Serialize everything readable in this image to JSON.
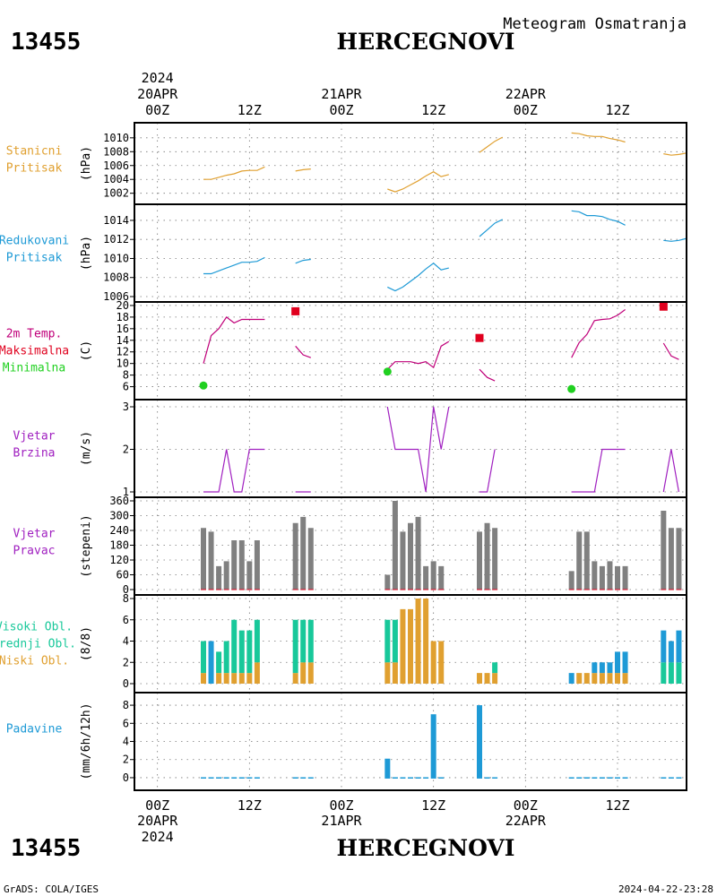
{
  "header": {
    "station_id": "13455",
    "station_name": "HERCEGNOVI",
    "subtitle": "Meteogram Osmatranja"
  },
  "footer": {
    "credit": "GrADS: COLA/IGES",
    "timestamp": "2024-04-22-23:28"
  },
  "time_axis": {
    "year": "2024",
    "tick_labels": [
      "00Z",
      "12Z",
      "00Z",
      "12Z",
      "00Z",
      "12Z"
    ],
    "date_labels": [
      "20APR",
      "21APR",
      "22APR"
    ],
    "range_hours": [
      -3,
      69
    ]
  },
  "colors": {
    "station_pressure": "#e0a030",
    "reduced_pressure": "#1e9ad6",
    "temp_line": "#c0007a",
    "temp_max": "#e0001e",
    "temp_min": "#20d020",
    "wind": "#a020c0",
    "wind_dir_bar": "#808080",
    "cloud_high": "#1e9ad6",
    "cloud_mid": "#18c89a",
    "cloud_low": "#e0a030",
    "precip": "#1e9ad6"
  },
  "chart_data": [
    {
      "type": "line",
      "panel": "station_pressure",
      "label_lines": [
        "Stanicni",
        "Pritisak"
      ],
      "ylabel": "(hPa)",
      "ylim": [
        1001.7,
        1011.4
      ],
      "yticks": [
        1002,
        1004,
        1006,
        1008,
        1010
      ],
      "segments": [
        [
          [
            6,
            1004.0
          ],
          [
            7,
            1004.0
          ],
          [
            8,
            1004.3
          ],
          [
            9,
            1004.6
          ],
          [
            10,
            1004.8
          ],
          [
            11,
            1005.2
          ],
          [
            12,
            1005.3
          ],
          [
            13,
            1005.3
          ],
          [
            14,
            1005.8
          ]
        ],
        [
          [
            18,
            1005.2
          ],
          [
            19,
            1005.4
          ],
          [
            20,
            1005.5
          ]
        ],
        [
          [
            30,
            1002.6
          ],
          [
            31,
            1002.2
          ],
          [
            32,
            1002.6
          ],
          [
            33,
            1003.2
          ],
          [
            34,
            1003.8
          ],
          [
            35,
            1004.5
          ],
          [
            36,
            1005.1
          ],
          [
            37,
            1004.4
          ],
          [
            38,
            1004.7
          ]
        ],
        [
          [
            42,
            1007.9
          ],
          [
            43,
            1008.7
          ],
          [
            44,
            1009.5
          ],
          [
            45,
            1010.1
          ]
        ],
        [
          [
            54,
            1010.7
          ],
          [
            55,
            1010.6
          ],
          [
            56,
            1010.3
          ],
          [
            57,
            1010.2
          ],
          [
            58,
            1010.2
          ],
          [
            59,
            1009.9
          ],
          [
            60,
            1009.7
          ],
          [
            61,
            1009.4
          ]
        ],
        [
          [
            66,
            1007.7
          ],
          [
            67,
            1007.5
          ],
          [
            68,
            1007.6
          ],
          [
            69,
            1007.8
          ]
        ]
      ]
    },
    {
      "type": "line",
      "panel": "reduced_pressure",
      "label_lines": [
        "Redukovani",
        "Pritisak"
      ],
      "ylabel": "(hPa)",
      "ylim": [
        1006.0,
        1015.5
      ],
      "yticks": [
        1006,
        1008,
        1010,
        1012,
        1014
      ],
      "segments": [
        [
          [
            6,
            1008.4
          ],
          [
            7,
            1008.4
          ],
          [
            8,
            1008.7
          ],
          [
            9,
            1009.0
          ],
          [
            10,
            1009.3
          ],
          [
            11,
            1009.6
          ],
          [
            12,
            1009.6
          ],
          [
            13,
            1009.7
          ],
          [
            14,
            1010.1
          ]
        ],
        [
          [
            18,
            1009.5
          ],
          [
            19,
            1009.8
          ],
          [
            20,
            1009.9
          ]
        ],
        [
          [
            30,
            1007.0
          ],
          [
            31,
            1006.6
          ],
          [
            32,
            1007.0
          ],
          [
            33,
            1007.6
          ],
          [
            34,
            1008.2
          ],
          [
            35,
            1008.9
          ],
          [
            36,
            1009.5
          ],
          [
            37,
            1008.8
          ],
          [
            38,
            1009.0
          ]
        ],
        [
          [
            42,
            1012.3
          ],
          [
            43,
            1013.0
          ],
          [
            44,
            1013.7
          ],
          [
            45,
            1014.1
          ]
        ],
        [
          [
            54,
            1015.0
          ],
          [
            55,
            1014.9
          ],
          [
            56,
            1014.5
          ],
          [
            57,
            1014.5
          ],
          [
            58,
            1014.4
          ],
          [
            59,
            1014.1
          ],
          [
            60,
            1013.9
          ],
          [
            61,
            1013.5
          ]
        ],
        [
          [
            66,
            1011.9
          ],
          [
            67,
            1011.8
          ],
          [
            68,
            1011.9
          ],
          [
            69,
            1012.1
          ]
        ]
      ]
    },
    {
      "type": "line",
      "panel": "temperature",
      "label_lines": [
        "2m Temp.",
        "Maksimalna",
        "Minimalna"
      ],
      "ylabel": "(C)",
      "ylim": [
        4.7,
        20.3
      ],
      "yticks": [
        6,
        8,
        10,
        12,
        14,
        16,
        18,
        20
      ],
      "segments": [
        [
          [
            6,
            10.0
          ],
          [
            7,
            14.8
          ],
          [
            8,
            16.0
          ],
          [
            9,
            18.0
          ],
          [
            10,
            17.0
          ],
          [
            11,
            17.6
          ],
          [
            12,
            17.6
          ],
          [
            13,
            17.6
          ],
          [
            14,
            17.6
          ]
        ],
        [
          [
            18,
            13.0
          ],
          [
            19,
            11.5
          ],
          [
            20,
            11.0
          ]
        ],
        [
          [
            30,
            9.0
          ],
          [
            31,
            10.3
          ],
          [
            32,
            10.3
          ],
          [
            33,
            10.3
          ],
          [
            34,
            10.0
          ],
          [
            35,
            10.3
          ],
          [
            36,
            9.3
          ],
          [
            37,
            13.0
          ],
          [
            38,
            13.8
          ]
        ],
        [
          [
            42,
            9.0
          ],
          [
            43,
            7.6
          ],
          [
            44,
            7.0
          ]
        ],
        [
          [
            54,
            11.0
          ],
          [
            55,
            13.6
          ],
          [
            56,
            15.0
          ],
          [
            57,
            17.4
          ],
          [
            58,
            17.6
          ],
          [
            59,
            17.7
          ],
          [
            60,
            18.3
          ],
          [
            61,
            19.3
          ]
        ],
        [
          [
            66,
            13.5
          ],
          [
            67,
            11.3
          ],
          [
            68,
            10.7
          ]
        ]
      ],
      "max_points": [
        [
          18,
          19.0
        ],
        [
          42,
          14.4
        ],
        [
          66,
          19.8
        ]
      ],
      "min_points": [
        [
          6,
          6.2
        ],
        [
          30,
          8.6
        ],
        [
          54,
          5.6
        ]
      ]
    },
    {
      "type": "line",
      "panel": "wind_speed",
      "label_lines": [
        "Vjetar",
        "Brzina"
      ],
      "ylabel": "(m/s)",
      "ylim": [
        1,
        3
      ],
      "yticks": [
        1,
        2,
        3
      ],
      "segments": [
        [
          [
            6,
            1
          ],
          [
            7,
            1
          ],
          [
            8,
            1
          ],
          [
            9,
            2
          ],
          [
            10,
            1
          ],
          [
            11,
            1
          ],
          [
            12,
            2
          ],
          [
            13,
            2
          ],
          [
            14,
            2
          ]
        ],
        [
          [
            18,
            1
          ],
          [
            19,
            1
          ],
          [
            20,
            1
          ]
        ],
        [
          [
            30,
            3
          ],
          [
            31,
            2
          ],
          [
            32,
            2
          ],
          [
            33,
            2
          ],
          [
            34,
            2
          ],
          [
            35,
            1
          ],
          [
            36,
            3
          ],
          [
            37,
            2
          ],
          [
            38,
            3
          ]
        ],
        [
          [
            42,
            1
          ],
          [
            43,
            1
          ],
          [
            44,
            2
          ]
        ],
        [
          [
            54,
            1
          ],
          [
            55,
            1
          ],
          [
            56,
            1
          ],
          [
            57,
            1
          ],
          [
            58,
            2
          ],
          [
            59,
            2
          ],
          [
            60,
            2
          ],
          [
            61,
            2
          ]
        ],
        [
          [
            66,
            1
          ],
          [
            67,
            2
          ],
          [
            68,
            1
          ]
        ]
      ]
    },
    {
      "type": "bar",
      "panel": "wind_direction",
      "label_lines": [
        "Vjetar",
        "Pravac"
      ],
      "ylabel": "(stepeni)",
      "ylim": [
        0,
        360
      ],
      "yticks": [
        0,
        60,
        120,
        180,
        240,
        300,
        360
      ],
      "bars": [
        [
          6,
          250
        ],
        [
          7,
          235
        ],
        [
          8,
          95
        ],
        [
          9,
          115
        ],
        [
          10,
          200
        ],
        [
          11,
          200
        ],
        [
          12,
          115
        ],
        [
          13,
          200
        ],
        [
          18,
          270
        ],
        [
          19,
          295
        ],
        [
          20,
          250
        ],
        [
          30,
          60
        ],
        [
          31,
          360
        ],
        [
          32,
          235
        ],
        [
          33,
          270
        ],
        [
          34,
          295
        ],
        [
          35,
          95
        ],
        [
          36,
          115
        ],
        [
          37,
          95
        ],
        [
          42,
          235
        ],
        [
          43,
          270
        ],
        [
          44,
          250
        ],
        [
          54,
          75
        ],
        [
          55,
          235
        ],
        [
          56,
          235
        ],
        [
          57,
          115
        ],
        [
          58,
          95
        ],
        [
          59,
          115
        ],
        [
          60,
          95
        ],
        [
          61,
          95
        ],
        [
          66,
          320
        ],
        [
          67,
          250
        ],
        [
          68,
          250
        ]
      ]
    },
    {
      "type": "bar",
      "panel": "clouds",
      "label_lines": [
        "Visoki Obl.",
        "Srednji Obl.",
        "Niski Obl."
      ],
      "ylabel": "(8/8)",
      "ylim": [
        0,
        8
      ],
      "yticks": [
        0,
        2,
        4,
        6,
        8
      ],
      "series_keys": [
        "low",
        "mid",
        "high"
      ],
      "bars": [
        [
          6,
          1,
          3,
          0
        ],
        [
          7,
          0,
          0,
          4
        ],
        [
          8,
          1,
          2,
          0
        ],
        [
          9,
          1,
          3,
          0
        ],
        [
          10,
          1,
          5,
          0
        ],
        [
          11,
          1,
          4,
          0
        ],
        [
          12,
          1,
          4,
          0
        ],
        [
          13,
          2,
          4,
          0
        ],
        [
          18,
          1,
          5,
          0
        ],
        [
          19,
          2,
          4,
          0
        ],
        [
          20,
          2,
          4,
          0
        ],
        [
          30,
          2,
          4,
          0
        ],
        [
          31,
          2,
          4,
          0
        ],
        [
          32,
          7,
          0,
          0
        ],
        [
          33,
          7,
          0,
          0
        ],
        [
          34,
          8,
          0,
          0
        ],
        [
          35,
          8,
          0,
          0
        ],
        [
          36,
          4,
          0,
          0
        ],
        [
          37,
          4,
          0,
          0
        ],
        [
          42,
          1,
          0,
          0
        ],
        [
          43,
          1,
          0,
          0
        ],
        [
          44,
          1,
          1,
          0
        ],
        [
          54,
          0,
          0,
          1
        ],
        [
          55,
          1,
          0,
          0
        ],
        [
          56,
          1,
          0,
          0
        ],
        [
          57,
          1,
          0,
          1
        ],
        [
          58,
          1,
          0,
          1
        ],
        [
          59,
          1,
          0,
          1
        ],
        [
          60,
          1,
          0,
          2
        ],
        [
          61,
          1,
          0,
          2
        ],
        [
          66,
          0,
          2,
          3
        ],
        [
          67,
          0,
          2,
          2
        ],
        [
          68,
          0,
          2,
          3
        ]
      ]
    },
    {
      "type": "bar",
      "panel": "precipitation",
      "label_lines": [
        "Padavine"
      ],
      "ylabel": "(mm/6h/12h)",
      "ylim": [
        -0.4,
        8.6
      ],
      "yticks": [
        0,
        2,
        4,
        6,
        8
      ],
      "bars": [
        [
          6,
          0.05
        ],
        [
          7,
          0.05
        ],
        [
          8,
          0.05
        ],
        [
          9,
          0.05
        ],
        [
          10,
          0.05
        ],
        [
          11,
          0.05
        ],
        [
          12,
          0.05
        ],
        [
          13,
          0.05
        ],
        [
          18,
          0.05
        ],
        [
          19,
          0.05
        ],
        [
          20,
          0.05
        ],
        [
          30,
          2.1
        ],
        [
          31,
          0.05
        ],
        [
          32,
          0.05
        ],
        [
          33,
          0.05
        ],
        [
          34,
          0.05
        ],
        [
          35,
          0.05
        ],
        [
          36,
          7.0
        ],
        [
          37,
          0.05
        ],
        [
          42,
          8.0
        ],
        [
          43,
          0.05
        ],
        [
          44,
          0.05
        ],
        [
          54,
          0.05
        ],
        [
          55,
          0.05
        ],
        [
          56,
          0.05
        ],
        [
          57,
          0.05
        ],
        [
          58,
          0.05
        ],
        [
          59,
          0.05
        ],
        [
          60,
          0.05
        ],
        [
          61,
          0.05
        ],
        [
          66,
          0.05
        ],
        [
          67,
          0.05
        ],
        [
          68,
          0.05
        ]
      ]
    }
  ]
}
